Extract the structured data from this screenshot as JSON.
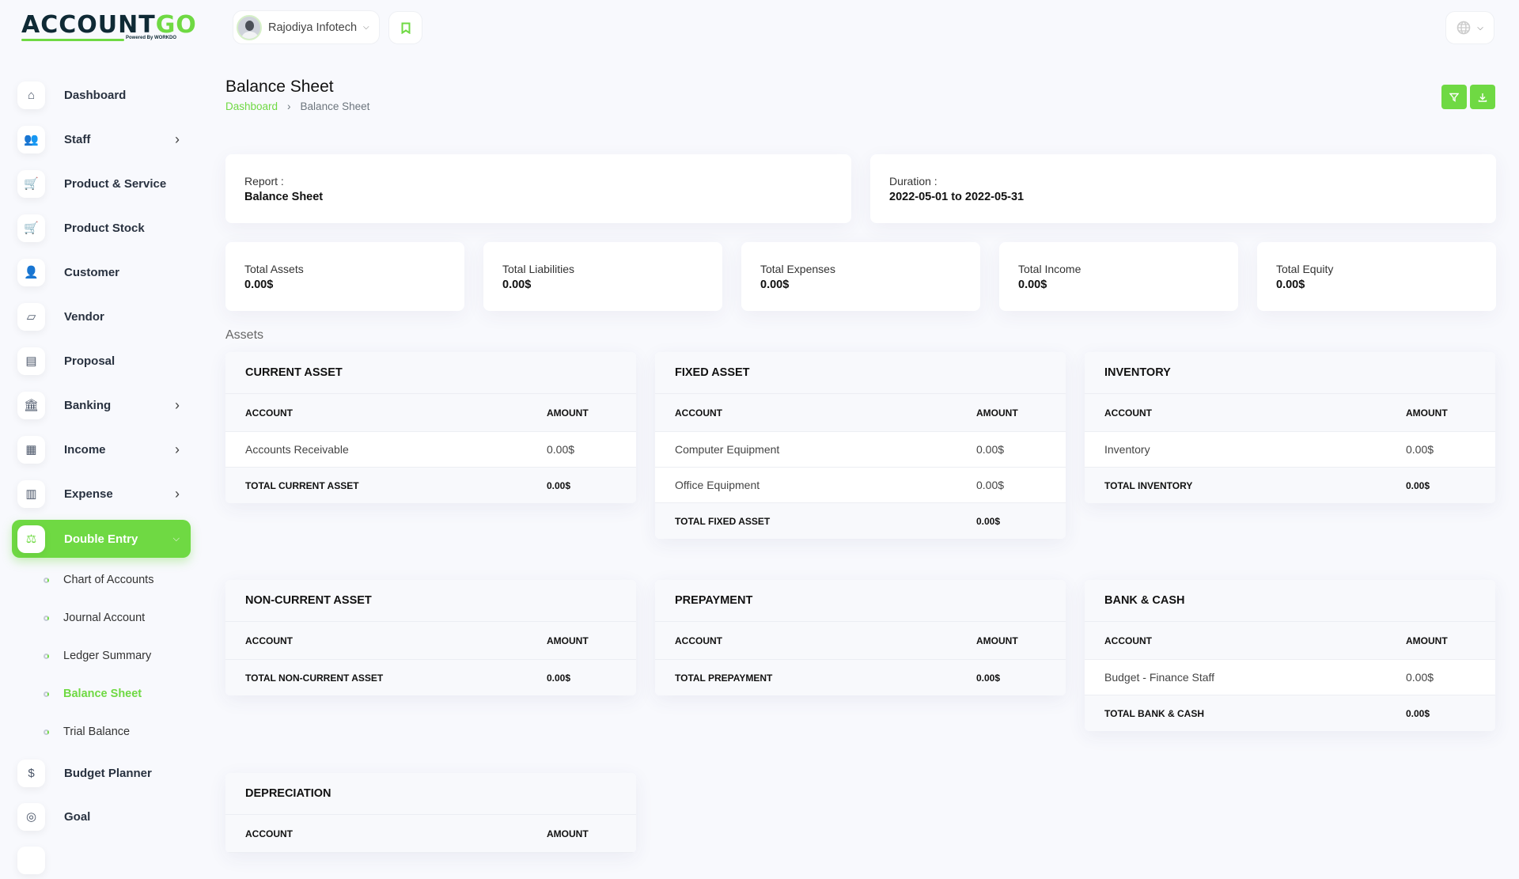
{
  "brand": {
    "name_dark": "ACCOUNT",
    "name_green": "GO",
    "powered": "Powered By WORKDO"
  },
  "header": {
    "company": "Rajodiya Infotech"
  },
  "sidebar": {
    "items": [
      {
        "label": "Dashboard",
        "icon": "home-icon",
        "glyph": "⌂",
        "arrow": false
      },
      {
        "label": "Staff",
        "icon": "users-icon",
        "glyph": "👥",
        "arrow": true
      },
      {
        "label": "Product & Service",
        "icon": "cart-icon",
        "glyph": "🛒",
        "arrow": false
      },
      {
        "label": "Product Stock",
        "icon": "cart-stock-icon",
        "glyph": "🛒",
        "arrow": false
      },
      {
        "label": "Customer",
        "icon": "user-plus-icon",
        "glyph": "👤",
        "arrow": false
      },
      {
        "label": "Vendor",
        "icon": "note-icon",
        "glyph": "▱",
        "arrow": false
      },
      {
        "label": "Proposal",
        "icon": "file-icon",
        "glyph": "▤",
        "arrow": false
      },
      {
        "label": "Banking",
        "icon": "bank-icon",
        "glyph": "🏛",
        "arrow": true
      },
      {
        "label": "Income",
        "icon": "invoice-icon",
        "glyph": "▦",
        "arrow": true
      },
      {
        "label": "Expense",
        "icon": "clipboard-icon",
        "glyph": "▥",
        "arrow": true
      },
      {
        "label": "Double Entry",
        "icon": "scale-icon",
        "glyph": "⚖",
        "arrow": true,
        "active": true
      }
    ],
    "subitems": [
      {
        "label": "Chart of Accounts"
      },
      {
        "label": "Journal Account"
      },
      {
        "label": "Ledger Summary"
      },
      {
        "label": "Balance Sheet",
        "active": true
      },
      {
        "label": "Trial Balance"
      }
    ],
    "after": [
      {
        "label": "Budget Planner",
        "icon": "coins-icon",
        "glyph": "$"
      },
      {
        "label": "Goal",
        "icon": "target-icon",
        "glyph": "◎"
      },
      {
        "label": "",
        "icon": "more-icon",
        "glyph": ""
      }
    ]
  },
  "page": {
    "title": "Balance Sheet",
    "breadcrumb": [
      "Dashboard",
      "Balance Sheet"
    ],
    "filter_icon": "filter-icon",
    "download_icon": "download-icon"
  },
  "report": {
    "label": "Report :",
    "value": "Balance Sheet"
  },
  "duration": {
    "label": "Duration :",
    "value": "2022-05-01 to 2022-05-31"
  },
  "stats": [
    {
      "label": "Total Assets",
      "value": "0.00$"
    },
    {
      "label": "Total Liabilities",
      "value": "0.00$"
    },
    {
      "label": "Total Expenses",
      "value": "0.00$"
    },
    {
      "label": "Total Income",
      "value": "0.00$"
    },
    {
      "label": "Total Equity",
      "value": "0.00$"
    }
  ],
  "section_title": "Assets",
  "col_account": "ACCOUNT",
  "col_amount": "AMOUNT",
  "tables": [
    {
      "title": "CURRENT ASSET",
      "rows": [
        [
          "Accounts Receivable",
          "0.00$"
        ]
      ],
      "total": [
        "TOTAL CURRENT ASSET",
        "0.00$"
      ]
    },
    {
      "title": "FIXED ASSET",
      "rows": [
        [
          "Computer Equipment",
          "0.00$"
        ],
        [
          "Office Equipment",
          "0.00$"
        ]
      ],
      "total": [
        "TOTAL FIXED ASSET",
        "0.00$"
      ]
    },
    {
      "title": "INVENTORY",
      "rows": [
        [
          "Inventory",
          "0.00$"
        ]
      ],
      "total": [
        "TOTAL INVENTORY",
        "0.00$"
      ]
    },
    {
      "title": "NON-CURRENT ASSET",
      "rows": [],
      "total": [
        "TOTAL NON-CURRENT ASSET",
        "0.00$"
      ]
    },
    {
      "title": "PREPAYMENT",
      "rows": [],
      "total": [
        "TOTAL PREPAYMENT",
        "0.00$"
      ]
    },
    {
      "title": "BANK & CASH",
      "rows": [
        [
          "Budget - Finance Staff",
          "0.00$"
        ]
      ],
      "total": [
        "TOTAL BANK & CASH",
        "0.00$"
      ]
    },
    {
      "title": "DEPRECIATION",
      "rows": [],
      "total": null
    }
  ],
  "colors": {
    "accent": "#6fd943",
    "text": "#293240"
  }
}
